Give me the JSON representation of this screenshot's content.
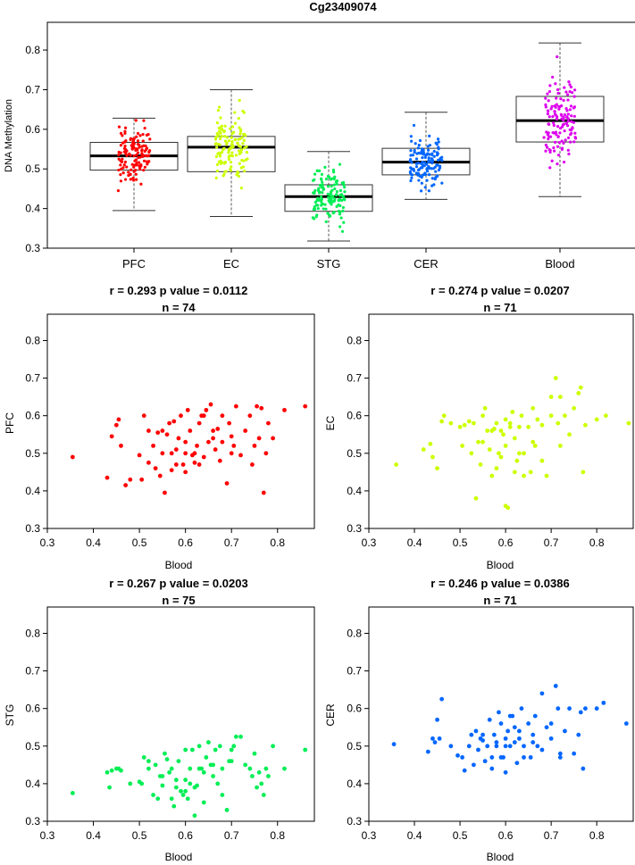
{
  "chart_data": [
    {
      "type": "boxplot",
      "title": "Cg23409074",
      "ylabel": "DNA Methylation",
      "xlabel": "",
      "ylim": [
        0.3,
        0.87
      ],
      "yticks": [
        0.3,
        0.4,
        0.5,
        0.6,
        0.7,
        0.8
      ],
      "categories": [
        "PFC",
        "EC",
        "STG",
        "CER",
        "Blood"
      ],
      "colors": [
        "#ff0000",
        "#ccff00",
        "#00ee55",
        "#0066ff",
        "#dd00ee"
      ],
      "boxes": [
        {
          "category": "PFC",
          "whisker_low": 0.395,
          "q1": 0.497,
          "median": 0.533,
          "q3": 0.567,
          "whisker_high": 0.628
        },
        {
          "category": "EC",
          "whisker_low": 0.38,
          "q1": 0.493,
          "median": 0.555,
          "q3": 0.582,
          "whisker_high": 0.7
        },
        {
          "category": "STG",
          "whisker_low": 0.318,
          "q1": 0.393,
          "median": 0.43,
          "q3": 0.46,
          "whisker_high": 0.544
        },
        {
          "category": "CER",
          "whisker_low": 0.423,
          "q1": 0.485,
          "median": 0.517,
          "q3": 0.552,
          "whisker_high": 0.643
        },
        {
          "category": "Blood",
          "whisker_low": 0.43,
          "q1": 0.568,
          "median": 0.622,
          "q3": 0.683,
          "whisker_high": 0.818
        }
      ]
    },
    {
      "type": "scatter",
      "title_line1": "r = 0.293 p value = 0.0112",
      "title_line2": "n = 74",
      "xlabel": "Blood",
      "ylabel": "PFC",
      "color": "#ff0000",
      "xlim": [
        0.3,
        0.88
      ],
      "ylim": [
        0.3,
        0.87
      ],
      "xticks": [
        0.3,
        0.4,
        0.5,
        0.6,
        0.7,
        0.8
      ],
      "yticks": [
        0.3,
        0.4,
        0.5,
        0.6,
        0.7,
        0.8
      ],
      "x": [
        0.355,
        0.43,
        0.44,
        0.45,
        0.455,
        0.46,
        0.47,
        0.5,
        0.505,
        0.52,
        0.53,
        0.535,
        0.54,
        0.545,
        0.55,
        0.555,
        0.56,
        0.565,
        0.57,
        0.575,
        0.58,
        0.585,
        0.59,
        0.595,
        0.6,
        0.6,
        0.605,
        0.61,
        0.615,
        0.62,
        0.625,
        0.63,
        0.635,
        0.64,
        0.645,
        0.65,
        0.655,
        0.66,
        0.665,
        0.67,
        0.675,
        0.68,
        0.69,
        0.695,
        0.7,
        0.705,
        0.71,
        0.72,
        0.73,
        0.74,
        0.745,
        0.75,
        0.755,
        0.76,
        0.765,
        0.77,
        0.775,
        0.78,
        0.79,
        0.815,
        0.86,
        0.48,
        0.52,
        0.58,
        0.62,
        0.64,
        0.66,
        0.68,
        0.6,
        0.55,
        0.51,
        0.63,
        0.57,
        0.7
      ],
      "y": [
        0.49,
        0.435,
        0.545,
        0.575,
        0.59,
        0.52,
        0.415,
        0.495,
        0.43,
        0.475,
        0.52,
        0.46,
        0.555,
        0.44,
        0.5,
        0.395,
        0.55,
        0.58,
        0.455,
        0.585,
        0.51,
        0.54,
        0.6,
        0.47,
        0.5,
        0.53,
        0.615,
        0.56,
        0.495,
        0.475,
        0.52,
        0.58,
        0.6,
        0.49,
        0.615,
        0.53,
        0.63,
        0.54,
        0.51,
        0.565,
        0.48,
        0.6,
        0.42,
        0.58,
        0.545,
        0.52,
        0.625,
        0.495,
        0.56,
        0.6,
        0.47,
        0.52,
        0.625,
        0.54,
        0.62,
        0.395,
        0.5,
        0.58,
        0.54,
        0.615,
        0.625,
        0.43,
        0.56,
        0.47,
        0.5,
        0.6,
        0.56,
        0.53,
        0.45,
        0.56,
        0.6,
        0.47,
        0.5,
        0.5
      ]
    },
    {
      "type": "scatter",
      "title_line1": "r = 0.274 p value = 0.0207",
      "title_line2": "n = 71",
      "xlabel": "Blood",
      "ylabel": "EC",
      "color": "#ccff00",
      "xlim": [
        0.3,
        0.88
      ],
      "ylim": [
        0.3,
        0.87
      ],
      "xticks": [
        0.3,
        0.4,
        0.5,
        0.6,
        0.7,
        0.8
      ],
      "yticks": [
        0.3,
        0.4,
        0.5,
        0.6,
        0.7,
        0.8
      ],
      "x": [
        0.36,
        0.42,
        0.435,
        0.44,
        0.45,
        0.46,
        0.465,
        0.5,
        0.505,
        0.51,
        0.52,
        0.53,
        0.535,
        0.54,
        0.545,
        0.55,
        0.555,
        0.56,
        0.565,
        0.57,
        0.575,
        0.58,
        0.585,
        0.59,
        0.595,
        0.6,
        0.605,
        0.61,
        0.615,
        0.62,
        0.625,
        0.63,
        0.635,
        0.64,
        0.65,
        0.655,
        0.66,
        0.665,
        0.67,
        0.68,
        0.69,
        0.7,
        0.71,
        0.715,
        0.72,
        0.73,
        0.74,
        0.75,
        0.76,
        0.765,
        0.77,
        0.775,
        0.8,
        0.82,
        0.87,
        0.48,
        0.525,
        0.57,
        0.58,
        0.6,
        0.62,
        0.64,
        0.66,
        0.68,
        0.7,
        0.72,
        0.55,
        0.59,
        0.63,
        0.61,
        0.6
      ],
      "y": [
        0.47,
        0.51,
        0.525,
        0.49,
        0.46,
        0.585,
        0.6,
        0.57,
        0.52,
        0.575,
        0.585,
        0.58,
        0.38,
        0.53,
        0.47,
        0.6,
        0.62,
        0.56,
        0.51,
        0.44,
        0.565,
        0.58,
        0.5,
        0.56,
        0.55,
        0.36,
        0.355,
        0.57,
        0.61,
        0.54,
        0.48,
        0.5,
        0.6,
        0.44,
        0.57,
        0.45,
        0.62,
        0.52,
        0.59,
        0.575,
        0.44,
        0.65,
        0.7,
        0.58,
        0.52,
        0.6,
        0.55,
        0.62,
        0.66,
        0.675,
        0.45,
        0.575,
        0.59,
        0.6,
        0.58,
        0.58,
        0.5,
        0.56,
        0.46,
        0.52,
        0.45,
        0.5,
        0.53,
        0.48,
        0.6,
        0.65,
        0.53,
        0.49,
        0.57,
        0.58,
        0.59
      ]
    },
    {
      "type": "scatter",
      "title_line1": "r = 0.267 p value = 0.0203",
      "title_line2": "n = 75",
      "xlabel": "Blood",
      "ylabel": "STG",
      "color": "#00ee55",
      "xlim": [
        0.3,
        0.88
      ],
      "ylim": [
        0.3,
        0.87
      ],
      "xticks": [
        0.3,
        0.4,
        0.5,
        0.6,
        0.7,
        0.8
      ],
      "yticks": [
        0.3,
        0.4,
        0.5,
        0.6,
        0.7,
        0.8
      ],
      "x": [
        0.355,
        0.43,
        0.435,
        0.44,
        0.45,
        0.455,
        0.46,
        0.5,
        0.505,
        0.52,
        0.53,
        0.535,
        0.54,
        0.545,
        0.55,
        0.555,
        0.56,
        0.565,
        0.57,
        0.575,
        0.58,
        0.585,
        0.59,
        0.595,
        0.6,
        0.6,
        0.605,
        0.61,
        0.615,
        0.62,
        0.625,
        0.63,
        0.635,
        0.64,
        0.645,
        0.65,
        0.655,
        0.66,
        0.665,
        0.67,
        0.675,
        0.68,
        0.69,
        0.695,
        0.7,
        0.705,
        0.71,
        0.72,
        0.73,
        0.74,
        0.745,
        0.75,
        0.755,
        0.76,
        0.765,
        0.77,
        0.775,
        0.78,
        0.79,
        0.815,
        0.86,
        0.48,
        0.52,
        0.58,
        0.62,
        0.64,
        0.66,
        0.68,
        0.6,
        0.55,
        0.51,
        0.63,
        0.57,
        0.7,
        0.61
      ],
      "y": [
        0.375,
        0.43,
        0.39,
        0.435,
        0.44,
        0.44,
        0.435,
        0.405,
        0.4,
        0.44,
        0.37,
        0.45,
        0.36,
        0.42,
        0.395,
        0.48,
        0.465,
        0.43,
        0.44,
        0.34,
        0.39,
        0.46,
        0.38,
        0.37,
        0.41,
        0.49,
        0.36,
        0.44,
        0.49,
        0.315,
        0.395,
        0.5,
        0.44,
        0.35,
        0.47,
        0.51,
        0.45,
        0.42,
        0.49,
        0.4,
        0.5,
        0.44,
        0.33,
        0.46,
        0.49,
        0.5,
        0.525,
        0.525,
        0.45,
        0.44,
        0.42,
        0.48,
        0.39,
        0.43,
        0.4,
        0.37,
        0.44,
        0.42,
        0.5,
        0.44,
        0.49,
        0.4,
        0.46,
        0.41,
        0.39,
        0.43,
        0.45,
        0.37,
        0.38,
        0.42,
        0.47,
        0.44,
        0.36,
        0.46,
        0.4
      ]
    },
    {
      "type": "scatter",
      "title_line1": "r = 0.246 p value = 0.0386",
      "title_line2": "n = 71",
      "xlabel": "Blood",
      "ylabel": "CER",
      "color": "#0066ff",
      "xlim": [
        0.3,
        0.88
      ],
      "ylim": [
        0.3,
        0.87
      ],
      "xticks": [
        0.3,
        0.4,
        0.5,
        0.6,
        0.7,
        0.8
      ],
      "yticks": [
        0.3,
        0.4,
        0.5,
        0.6,
        0.7,
        0.8
      ],
      "x": [
        0.355,
        0.43,
        0.44,
        0.445,
        0.45,
        0.455,
        0.46,
        0.495,
        0.505,
        0.51,
        0.52,
        0.53,
        0.535,
        0.54,
        0.545,
        0.55,
        0.555,
        0.56,
        0.565,
        0.57,
        0.575,
        0.58,
        0.585,
        0.59,
        0.595,
        0.6,
        0.605,
        0.61,
        0.615,
        0.62,
        0.625,
        0.63,
        0.635,
        0.64,
        0.65,
        0.655,
        0.66,
        0.665,
        0.67,
        0.68,
        0.69,
        0.7,
        0.71,
        0.715,
        0.72,
        0.73,
        0.74,
        0.75,
        0.76,
        0.765,
        0.77,
        0.775,
        0.8,
        0.815,
        0.865,
        0.48,
        0.525,
        0.57,
        0.58,
        0.6,
        0.62,
        0.64,
        0.66,
        0.68,
        0.7,
        0.72,
        0.55,
        0.59,
        0.63,
        0.61,
        0.6
      ],
      "y": [
        0.505,
        0.485,
        0.52,
        0.51,
        0.57,
        0.52,
        0.625,
        0.475,
        0.47,
        0.435,
        0.5,
        0.45,
        0.54,
        0.49,
        0.52,
        0.53,
        0.46,
        0.5,
        0.57,
        0.44,
        0.53,
        0.51,
        0.59,
        0.56,
        0.47,
        0.43,
        0.54,
        0.5,
        0.58,
        0.51,
        0.455,
        0.54,
        0.6,
        0.5,
        0.56,
        0.47,
        0.53,
        0.58,
        0.5,
        0.64,
        0.55,
        0.52,
        0.66,
        0.6,
        0.47,
        0.54,
        0.6,
        0.48,
        0.53,
        0.59,
        0.44,
        0.6,
        0.6,
        0.615,
        0.56,
        0.5,
        0.53,
        0.47,
        0.5,
        0.52,
        0.55,
        0.47,
        0.51,
        0.49,
        0.56,
        0.48,
        0.515,
        0.47,
        0.52,
        0.58,
        0.5
      ]
    }
  ]
}
